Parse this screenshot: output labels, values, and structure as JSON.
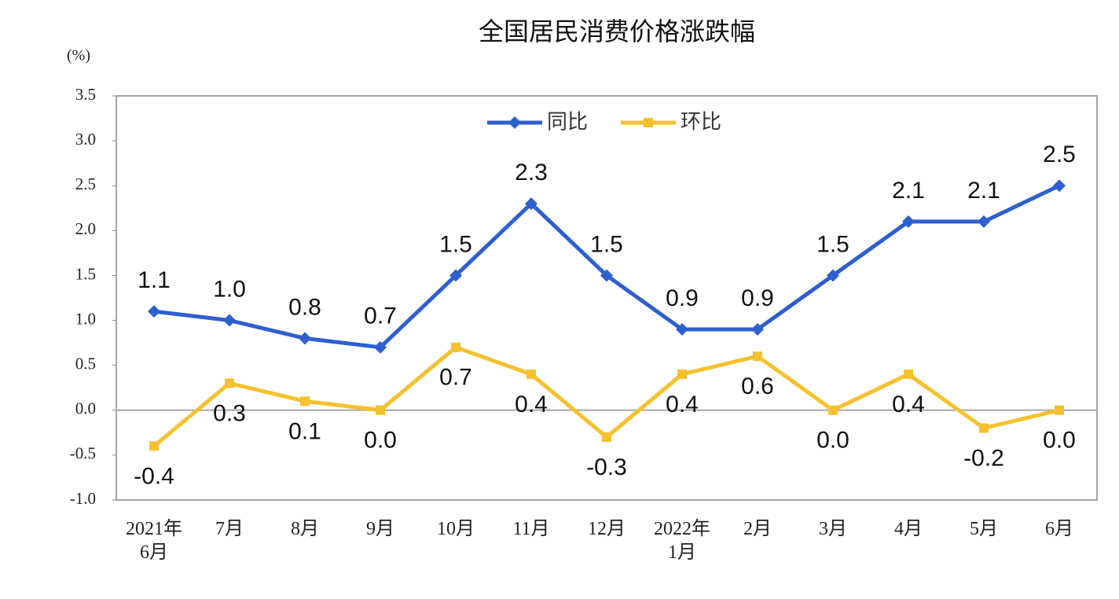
{
  "chart_data": {
    "type": "line",
    "title": "全国居民消费价格涨跌幅",
    "y_unit": "(%)",
    "categories": [
      "2021年\n6月",
      "7月",
      "8月",
      "9月",
      "10月",
      "11月",
      "12月",
      "2022年\n1月",
      "2月",
      "3月",
      "4月",
      "5月",
      "6月"
    ],
    "series": [
      {
        "name": "同比",
        "color": "#2e5fcf",
        "marker": "diamond",
        "label_position": "above",
        "values": [
          1.1,
          1.0,
          0.8,
          0.7,
          1.5,
          2.3,
          1.5,
          0.9,
          0.9,
          1.5,
          2.1,
          2.1,
          2.5
        ],
        "value_labels": [
          "1.1",
          "1.0",
          "0.8",
          "0.7",
          "1.5",
          "2.3",
          "1.5",
          "0.9",
          "0.9",
          "1.5",
          "2.1",
          "2.1",
          "2.5"
        ]
      },
      {
        "name": "环比",
        "color": "#f5c12c",
        "marker": "square",
        "label_position": "below",
        "values": [
          -0.4,
          0.3,
          0.1,
          0.0,
          0.7,
          0.4,
          -0.3,
          0.4,
          0.6,
          0.0,
          0.4,
          -0.2,
          0.0
        ],
        "value_labels": [
          "-0.4",
          "0.3",
          "0.1",
          "0.0",
          "0.7",
          "0.4",
          "-0.3",
          "0.4",
          "0.6",
          "0.0",
          "0.4",
          "-0.2",
          "0.0"
        ]
      }
    ],
    "ylim": [
      -1.0,
      3.5
    ],
    "yticks": [
      {
        "value": -1,
        "label": "-1.0"
      },
      -0.5,
      {
        "value": 0,
        "label": "0.0"
      },
      0.5,
      {
        "value": 1,
        "label": "1.0"
      },
      1.5,
      {
        "value": 2,
        "label": "2.0"
      },
      2.5,
      {
        "value": 3,
        "label": "3.0"
      },
      3.5
    ],
    "zero_line": true,
    "legend": "top"
  }
}
